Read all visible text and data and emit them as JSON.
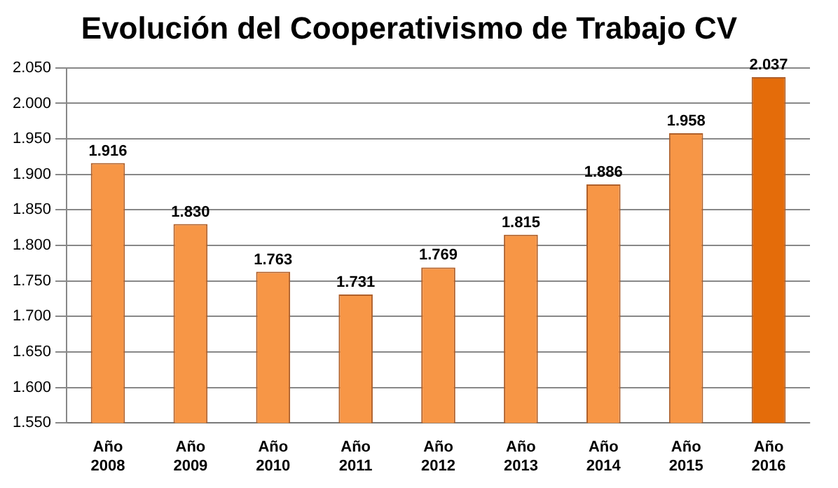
{
  "chart_data": {
    "type": "bar",
    "title": "Evolución del Cooperativismo de Trabajo CV",
    "categories": [
      "Año 2008",
      "Año 2009",
      "Año 2010",
      "Año 2011",
      "Año 2012",
      "Año 2013",
      "Año 2014",
      "Año 2015",
      "Año 2016"
    ],
    "values": [
      1916,
      1830,
      1763,
      1731,
      1769,
      1815,
      1886,
      1958,
      2037
    ],
    "colors": [
      "#f79646",
      "#f79646",
      "#f79646",
      "#f79646",
      "#f79646",
      "#f79646",
      "#f79646",
      "#f79646",
      "#e46c0a"
    ],
    "value_labels": [
      "1.916",
      "1.830",
      "1.763",
      "1.731",
      "1.769",
      "1.815",
      "1.886",
      "1.958",
      "2.037"
    ],
    "ylim": [
      1550,
      2050
    ],
    "yticks": [
      {
        "value": 1550,
        "label": "1.550"
      },
      {
        "value": 1600,
        "label": "1.600"
      },
      {
        "value": 1650,
        "label": "1.650"
      },
      {
        "value": 1700,
        "label": "1.700"
      },
      {
        "value": 1750,
        "label": "1.750"
      },
      {
        "value": 1800,
        "label": "1.800"
      },
      {
        "value": 1850,
        "label": "1.850"
      },
      {
        "value": 1900,
        "label": "1.900"
      },
      {
        "value": 1950,
        "label": "1.950"
      },
      {
        "value": 2000,
        "label": "2.000"
      },
      {
        "value": 2050,
        "label": "2.050"
      }
    ],
    "grid": "y"
  }
}
